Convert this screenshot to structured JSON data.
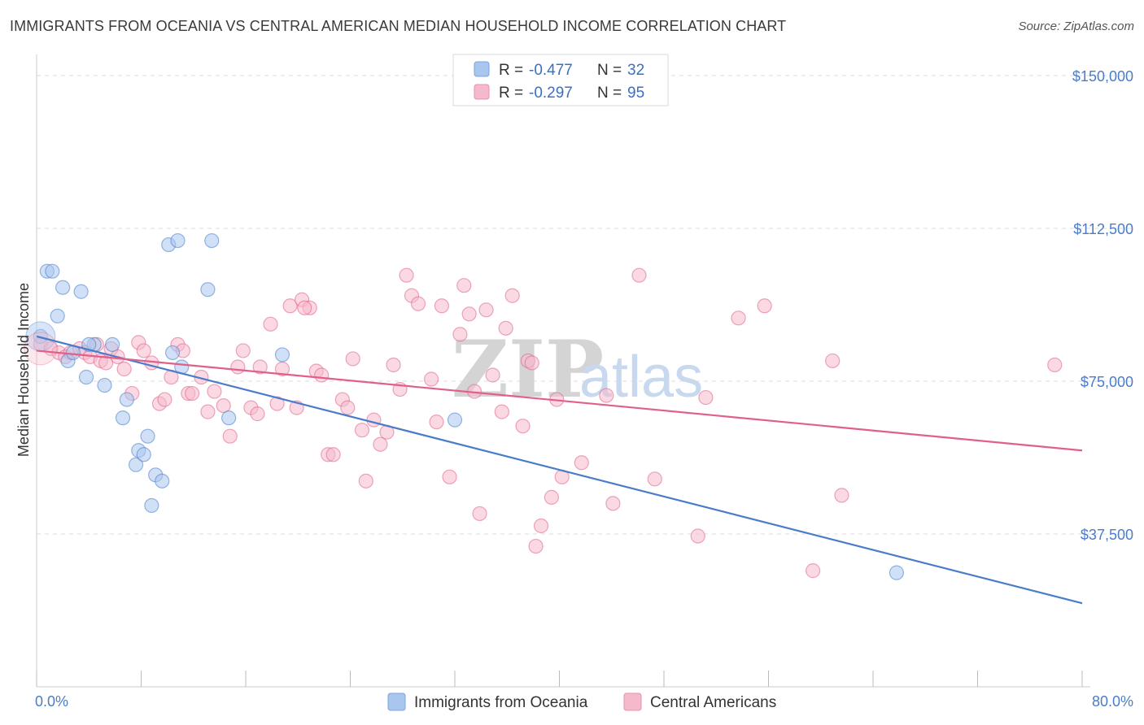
{
  "header": {
    "title": "IMMIGRANTS FROM OCEANIA VS CENTRAL AMERICAN MEDIAN HOUSEHOLD INCOME CORRELATION CHART",
    "source": "Source: ZipAtlas.com"
  },
  "legend": {
    "rows": [
      {
        "r_label": "R =",
        "r_value": "-0.477",
        "n_label": "N =",
        "n_value": "32",
        "color": "#a9c6ef"
      },
      {
        "r_label": "R =",
        "r_value": "-0.297",
        "n_label": "N =",
        "n_value": "95",
        "color": "#f5b9cc"
      }
    ]
  },
  "watermark": {
    "zip": "ZIP",
    "atlas": "atlas"
  },
  "chart_data": {
    "type": "scatter",
    "title": "IMMIGRANTS FROM OCEANIA VS CENTRAL AMERICAN MEDIAN HOUSEHOLD INCOME CORRELATION CHART",
    "xlabel": "",
    "ylabel": "Median Household Income",
    "xlim": [
      0,
      80
    ],
    "ylim": [
      0,
      153000
    ],
    "x_tick_labels": [
      "0.0%",
      "80.0%"
    ],
    "y_ticks": [
      37500,
      75000,
      112500,
      150000
    ],
    "y_tick_labels": [
      "$37,500",
      "$75,000",
      "$112,500",
      "$150,000"
    ],
    "grid": true,
    "legend_position": "top-center",
    "series": [
      {
        "name": "Immigrants from Oceania",
        "color": "#4a7cc9",
        "fill": "#a9c6ef",
        "trend": {
          "x": [
            0,
            80
          ],
          "y": [
            86000,
            20500
          ]
        },
        "points": [
          [
            0.3,
            86000
          ],
          [
            0.8,
            102000
          ],
          [
            1.2,
            102000
          ],
          [
            1.6,
            91000
          ],
          [
            2.0,
            98000
          ],
          [
            2.4,
            80000
          ],
          [
            2.8,
            82000
          ],
          [
            3.4,
            97000
          ],
          [
            3.8,
            76000
          ],
          [
            4.4,
            84000
          ],
          [
            5.2,
            74000
          ],
          [
            5.8,
            84000
          ],
          [
            6.6,
            66000
          ],
          [
            6.9,
            70500
          ],
          [
            7.8,
            58000
          ],
          [
            7.6,
            54500
          ],
          [
            8.2,
            57000
          ],
          [
            8.5,
            61500
          ],
          [
            8.8,
            44500
          ],
          [
            9.1,
            52000
          ],
          [
            9.6,
            50500
          ],
          [
            10.1,
            108500
          ],
          [
            10.8,
            109500
          ],
          [
            10.4,
            82000
          ],
          [
            11.1,
            78500
          ],
          [
            13.1,
            97500
          ],
          [
            13.4,
            109500
          ],
          [
            14.7,
            66000
          ],
          [
            18.8,
            81500
          ],
          [
            32.0,
            65500
          ],
          [
            65.8,
            28000
          ],
          [
            4.0,
            84000
          ]
        ]
      },
      {
        "name": "Central Americans",
        "color": "#e0608a",
        "fill": "#f5b9cc",
        "trend": {
          "x": [
            0,
            80
          ],
          "y": [
            82500,
            58000
          ]
        },
        "points": [
          [
            0.3,
            84000
          ],
          [
            1.1,
            83000
          ],
          [
            1.7,
            82000
          ],
          [
            2.2,
            81000
          ],
          [
            2.6,
            82000
          ],
          [
            3.3,
            83000
          ],
          [
            3.7,
            82000
          ],
          [
            4.1,
            81000
          ],
          [
            4.6,
            84000
          ],
          [
            4.9,
            80000
          ],
          [
            5.3,
            79500
          ],
          [
            5.7,
            83000
          ],
          [
            6.2,
            81000
          ],
          [
            6.7,
            78000
          ],
          [
            7.3,
            72000
          ],
          [
            7.8,
            84500
          ],
          [
            8.2,
            82500
          ],
          [
            8.8,
            79500
          ],
          [
            9.4,
            69500
          ],
          [
            9.8,
            70500
          ],
          [
            10.3,
            76000
          ],
          [
            10.8,
            84000
          ],
          [
            11.2,
            82500
          ],
          [
            11.6,
            72000
          ],
          [
            11.9,
            72000
          ],
          [
            12.6,
            76000
          ],
          [
            13.1,
            67500
          ],
          [
            13.6,
            72500
          ],
          [
            14.3,
            69000
          ],
          [
            14.8,
            61500
          ],
          [
            15.4,
            78500
          ],
          [
            15.8,
            82500
          ],
          [
            16.4,
            68500
          ],
          [
            16.9,
            67000
          ],
          [
            17.1,
            78500
          ],
          [
            17.9,
            89000
          ],
          [
            18.4,
            69500
          ],
          [
            18.8,
            78000
          ],
          [
            19.4,
            93500
          ],
          [
            19.9,
            68500
          ],
          [
            20.3,
            95000
          ],
          [
            20.9,
            93000
          ],
          [
            21.4,
            77500
          ],
          [
            21.8,
            76500
          ],
          [
            22.3,
            57000
          ],
          [
            22.7,
            57000
          ],
          [
            23.4,
            70500
          ],
          [
            23.8,
            68500
          ],
          [
            24.2,
            80500
          ],
          [
            24.9,
            63000
          ],
          [
            25.2,
            50500
          ],
          [
            25.8,
            65500
          ],
          [
            26.3,
            59500
          ],
          [
            26.8,
            62500
          ],
          [
            27.3,
            79000
          ],
          [
            27.8,
            73000
          ],
          [
            28.3,
            101000
          ],
          [
            28.7,
            96000
          ],
          [
            29.2,
            94000
          ],
          [
            30.2,
            75500
          ],
          [
            30.6,
            65000
          ],
          [
            31.0,
            93500
          ],
          [
            31.6,
            51500
          ],
          [
            32.4,
            86500
          ],
          [
            32.7,
            98500
          ],
          [
            33.1,
            91500
          ],
          [
            33.5,
            72500
          ],
          [
            33.9,
            42500
          ],
          [
            34.4,
            92500
          ],
          [
            34.9,
            76500
          ],
          [
            35.6,
            67500
          ],
          [
            35.9,
            88000
          ],
          [
            36.4,
            96000
          ],
          [
            37.2,
            64000
          ],
          [
            37.6,
            80000
          ],
          [
            37.9,
            79500
          ],
          [
            38.2,
            34500
          ],
          [
            38.6,
            39500
          ],
          [
            39.4,
            46500
          ],
          [
            39.8,
            70500
          ],
          [
            40.2,
            51500
          ],
          [
            41.7,
            55000
          ],
          [
            43.6,
            71500
          ],
          [
            44.1,
            45000
          ],
          [
            46.1,
            101000
          ],
          [
            47.3,
            51000
          ],
          [
            50.6,
            37000
          ],
          [
            51.2,
            71000
          ],
          [
            53.7,
            90500
          ],
          [
            55.7,
            93500
          ],
          [
            59.4,
            28500
          ],
          [
            60.9,
            80000
          ],
          [
            61.6,
            47000
          ],
          [
            77.9,
            79000
          ],
          [
            20.5,
            93000
          ]
        ]
      }
    ]
  },
  "bottom_legend": {
    "items": [
      {
        "label": "Immigrants from Oceania",
        "color": "#a9c6ef"
      },
      {
        "label": "Central Americans",
        "color": "#f5b9cc"
      }
    ]
  }
}
